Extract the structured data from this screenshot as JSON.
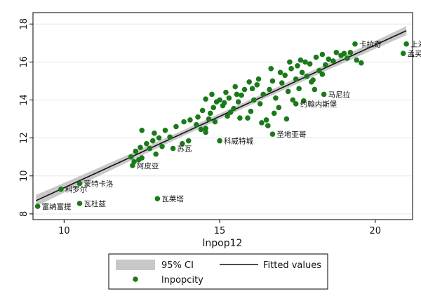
{
  "chart_data": {
    "type": "scatter",
    "xlabel": "lnpop12",
    "ylabel": "",
    "xlim": [
      9.0,
      21.2
    ],
    "ylim": [
      7.7,
      18.6
    ],
    "x_ticks": [
      10,
      15,
      20
    ],
    "y_ticks": [
      8,
      10,
      12,
      14,
      16,
      18
    ],
    "grid": "horizontal",
    "colors": {
      "points": "#1a7a1a",
      "line": "#111111",
      "ci_band": "#c8c8c8",
      "frame": "#000000"
    },
    "fit": {
      "label": "Fitted values",
      "x": [
        9.1,
        21.0
      ],
      "y": [
        8.7,
        17.65
      ]
    },
    "ci": {
      "label": "95% CI",
      "x": [
        9.1,
        21.0
      ],
      "half_width": [
        0.3,
        0.24
      ]
    },
    "scatter_label": "lnpopcity",
    "labeled_points": [
      {
        "name": "富纳富提",
        "x": 9.15,
        "y": 8.4
      },
      {
        "name": "科罗尔",
        "x": 9.9,
        "y": 9.3
      },
      {
        "name": "蒙特卡洛",
        "x": 10.5,
        "y": 9.6
      },
      {
        "name": "瓦杜兹",
        "x": 10.5,
        "y": 8.55
      },
      {
        "name": "瓦莱塔",
        "x": 13.0,
        "y": 8.8
      },
      {
        "name": "阿皮亚",
        "x": 12.2,
        "y": 10.55
      },
      {
        "name": "苏瓦",
        "x": 13.5,
        "y": 11.45
      },
      {
        "name": "科威特城",
        "x": 15.0,
        "y": 11.85
      },
      {
        "name": "圣地亚哥",
        "x": 16.7,
        "y": 12.2
      },
      {
        "name": "约翰内斯堡",
        "x": 17.45,
        "y": 13.8
      },
      {
        "name": "马尼拉",
        "x": 18.35,
        "y": 14.3
      },
      {
        "name": "卡拉奇",
        "x": 19.35,
        "y": 16.95
      },
      {
        "name": "上海",
        "x": 21.0,
        "y": 16.95
      },
      {
        "name": "孟买",
        "x": 20.9,
        "y": 16.45
      }
    ],
    "cluster_points": [
      [
        12.15,
        11.0
      ],
      [
        12.3,
        11.3
      ],
      [
        12.45,
        11.5
      ],
      [
        12.65,
        11.7
      ],
      [
        12.85,
        11.85
      ],
      [
        13.05,
        12.0
      ],
      [
        12.25,
        10.75
      ],
      [
        12.5,
        10.95
      ],
      [
        12.95,
        11.15
      ],
      [
        12.4,
        10.85
      ],
      [
        12.75,
        11.45
      ],
      [
        13.15,
        11.55
      ],
      [
        12.5,
        12.4
      ],
      [
        12.9,
        12.25
      ],
      [
        13.25,
        12.4
      ],
      [
        13.6,
        12.6
      ],
      [
        13.85,
        12.85
      ],
      [
        14.05,
        12.95
      ],
      [
        14.3,
        13.1
      ],
      [
        14.0,
        11.85
      ],
      [
        13.8,
        11.7
      ],
      [
        14.55,
        12.3
      ],
      [
        14.55,
        12.5
      ],
      [
        14.65,
        13.0
      ],
      [
        14.7,
        13.3
      ],
      [
        14.8,
        13.6
      ],
      [
        14.9,
        13.9
      ],
      [
        14.55,
        14.05
      ],
      [
        14.75,
        14.3
      ],
      [
        15.0,
        14.0
      ],
      [
        15.1,
        13.7
      ],
      [
        15.2,
        14.4
      ],
      [
        15.3,
        14.1
      ],
      [
        15.35,
        13.35
      ],
      [
        15.45,
        13.55
      ],
      [
        15.5,
        14.7
      ],
      [
        15.6,
        13.9
      ],
      [
        15.7,
        14.25
      ],
      [
        15.8,
        14.55
      ],
      [
        15.9,
        13.05
      ],
      [
        16.0,
        13.4
      ],
      [
        16.1,
        14.0
      ],
      [
        16.2,
        14.8
      ],
      [
        16.3,
        13.8
      ],
      [
        16.4,
        14.3
      ],
      [
        16.5,
        12.95
      ],
      [
        16.55,
        12.65
      ],
      [
        16.6,
        14.55
      ],
      [
        16.7,
        15.0
      ],
      [
        16.8,
        14.1
      ],
      [
        16.9,
        13.6
      ],
      [
        17.0,
        14.9
      ],
      [
        17.1,
        15.3
      ],
      [
        17.2,
        14.45
      ],
      [
        17.3,
        15.65
      ],
      [
        17.35,
        14.0
      ],
      [
        17.45,
        15.1
      ],
      [
        17.5,
        15.8
      ],
      [
        17.55,
        14.6
      ],
      [
        17.6,
        16.1
      ],
      [
        17.65,
        15.45
      ],
      [
        17.75,
        16.0
      ],
      [
        17.8,
        15.25
      ],
      [
        17.9,
        15.9
      ],
      [
        18.0,
        15.05
      ],
      [
        18.1,
        16.25
      ],
      [
        18.2,
        15.55
      ],
      [
        18.3,
        16.4
      ],
      [
        18.4,
        15.85
      ],
      [
        18.5,
        16.15
      ],
      [
        18.65,
        16.05
      ],
      [
        18.75,
        16.5
      ],
      [
        18.9,
        16.35
      ],
      [
        19.0,
        16.45
      ],
      [
        19.1,
        16.2
      ],
      [
        19.2,
        16.5
      ],
      [
        19.4,
        16.1
      ],
      [
        19.55,
        15.95
      ],
      [
        16.25,
        15.1
      ],
      [
        15.95,
        14.95
      ],
      [
        15.25,
        13.15
      ],
      [
        14.85,
        12.85
      ],
      [
        14.45,
        13.45
      ],
      [
        16.35,
        12.8
      ],
      [
        16.75,
        13.3
      ],
      [
        17.15,
        13.0
      ],
      [
        17.7,
        13.95
      ],
      [
        18.05,
        14.55
      ],
      [
        18.3,
        15.35
      ],
      [
        16.65,
        15.65
      ],
      [
        15.55,
        14.3
      ],
      [
        15.15,
        13.85
      ],
      [
        14.4,
        12.45
      ],
      [
        14.25,
        12.7
      ],
      [
        13.4,
        12.05
      ],
      [
        17.95,
        14.95
      ],
      [
        17.25,
        16.0
      ],
      [
        16.95,
        15.45
      ],
      [
        16.05,
        14.6
      ],
      [
        15.65,
        13.05
      ]
    ]
  },
  "legend": {
    "ci_label": "95% CI",
    "fit_label": "Fitted values",
    "scatter_label": "lnpopcity"
  }
}
